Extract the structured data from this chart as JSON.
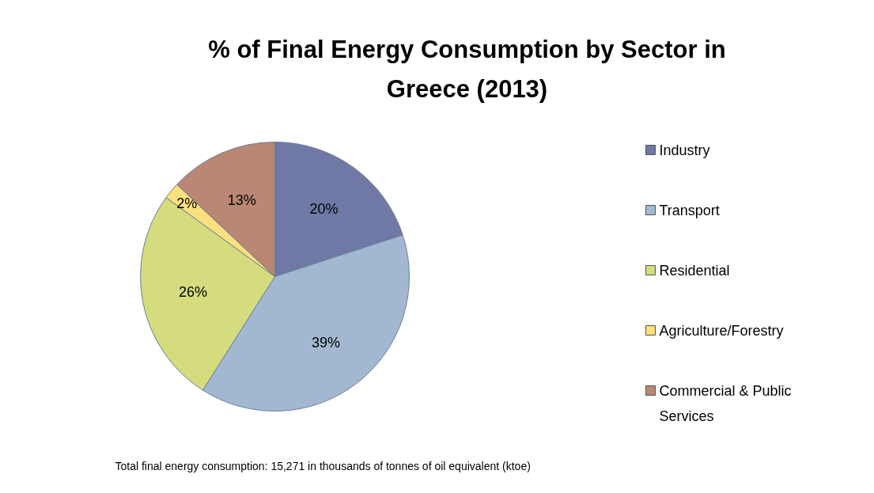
{
  "chart_data": {
    "type": "pie",
    "title": "% of Final Energy Consumption by Sector in Greece (2013)",
    "categories": [
      "Industry",
      "Transport",
      "Residential",
      "Agriculture/Forestry",
      "Commercial & Public Services"
    ],
    "values": [
      20,
      39,
      26,
      2,
      13
    ],
    "value_labels": [
      "20%",
      "39%",
      "26%",
      "2%",
      "13%"
    ],
    "colors": [
      "#7079a5",
      "#a2b8d0",
      "#d4dc7e",
      "#fde07e",
      "#b98773"
    ],
    "legend": "right",
    "annotations": [
      "Total final energy consumption: 15,271 in thousands of tonnes of oil equivalent (ktoe)"
    ]
  }
}
